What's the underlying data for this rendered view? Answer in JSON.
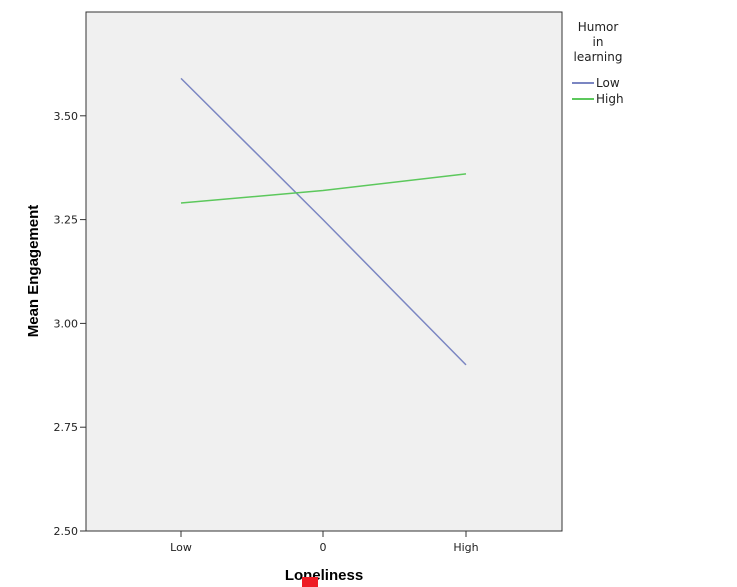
{
  "chart_data": {
    "type": "line",
    "title": "",
    "xlabel": "Loneliness",
    "ylabel": "Mean Engagement",
    "categories": [
      "Low",
      "0",
      "High"
    ],
    "ylim": [
      2.5,
      3.75
    ],
    "yticks": [
      "2.50",
      "2.75",
      "3.00",
      "3.25",
      "3.50"
    ],
    "grid": false,
    "legend": {
      "title_lines": [
        "Humor",
        "in",
        "learning"
      ],
      "placement": "right"
    },
    "series": [
      {
        "name": "Low",
        "color": "#7b86c2",
        "values": [
          3.59,
          3.25,
          2.9
        ]
      },
      {
        "name": "High",
        "color": "#5cc85c",
        "values": [
          3.29,
          3.32,
          3.36
        ]
      }
    ]
  },
  "colors": {
    "plot_background": "#f0f0f0",
    "marker": "#ee1c25"
  }
}
